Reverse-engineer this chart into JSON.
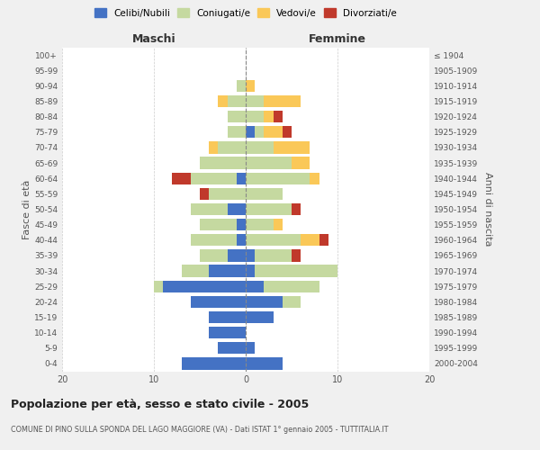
{
  "age_groups": [
    "0-4",
    "5-9",
    "10-14",
    "15-19",
    "20-24",
    "25-29",
    "30-34",
    "35-39",
    "40-44",
    "45-49",
    "50-54",
    "55-59",
    "60-64",
    "65-69",
    "70-74",
    "75-79",
    "80-84",
    "85-89",
    "90-94",
    "95-99",
    "100+"
  ],
  "birth_years": [
    "2000-2004",
    "1995-1999",
    "1990-1994",
    "1985-1989",
    "1980-1984",
    "1975-1979",
    "1970-1974",
    "1965-1969",
    "1960-1964",
    "1955-1959",
    "1950-1954",
    "1945-1949",
    "1940-1944",
    "1935-1939",
    "1930-1934",
    "1925-1929",
    "1920-1924",
    "1915-1919",
    "1910-1914",
    "1905-1909",
    "≤ 1904"
  ],
  "maschi": {
    "celibi": [
      7,
      3,
      4,
      4,
      6,
      9,
      4,
      2,
      1,
      1,
      2,
      0,
      1,
      0,
      0,
      0,
      0,
      0,
      0,
      0,
      0
    ],
    "coniugati": [
      0,
      0,
      0,
      0,
      0,
      1,
      3,
      3,
      5,
      4,
      4,
      4,
      5,
      5,
      3,
      2,
      2,
      2,
      1,
      0,
      0
    ],
    "vedovi": [
      0,
      0,
      0,
      0,
      0,
      0,
      0,
      0,
      0,
      0,
      0,
      0,
      0,
      0,
      1,
      0,
      0,
      1,
      0,
      0,
      0
    ],
    "divorziati": [
      0,
      0,
      0,
      0,
      0,
      0,
      0,
      0,
      0,
      0,
      0,
      1,
      2,
      0,
      0,
      0,
      0,
      0,
      0,
      0,
      0
    ]
  },
  "femmine": {
    "nubili": [
      4,
      1,
      0,
      3,
      4,
      2,
      1,
      1,
      0,
      0,
      0,
      0,
      0,
      0,
      0,
      1,
      0,
      0,
      0,
      0,
      0
    ],
    "coniugate": [
      0,
      0,
      0,
      0,
      2,
      6,
      9,
      4,
      6,
      3,
      5,
      4,
      7,
      5,
      3,
      1,
      2,
      2,
      0,
      0,
      0
    ],
    "vedove": [
      0,
      0,
      0,
      0,
      0,
      0,
      0,
      0,
      2,
      1,
      0,
      0,
      1,
      2,
      4,
      2,
      1,
      4,
      1,
      0,
      0
    ],
    "divorziate": [
      0,
      0,
      0,
      0,
      0,
      0,
      0,
      1,
      1,
      0,
      1,
      0,
      0,
      0,
      0,
      1,
      1,
      0,
      0,
      0,
      0
    ]
  },
  "colors": {
    "celibi_nubili": "#4472C4",
    "coniugati": "#C5D9A0",
    "vedovi": "#FAC858",
    "divorziati": "#C0392B"
  },
  "xlim": 20,
  "title": "Popolazione per età, sesso e stato civile - 2005",
  "subtitle": "COMUNE DI PINO SULLA SPONDA DEL LAGO MAGGIORE (VA) - Dati ISTAT 1° gennaio 2005 - TUTTITALIA.IT",
  "ylabel_left": "Fasce di età",
  "ylabel_right": "Anni di nascita",
  "xlabel_left": "Maschi",
  "xlabel_right": "Femmine",
  "bg_color": "#F0F0F0",
  "plot_bg": "#FFFFFF"
}
